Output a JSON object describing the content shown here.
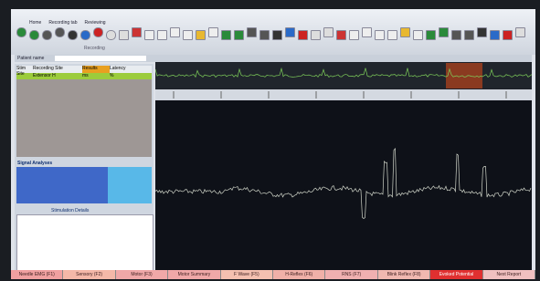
{
  "menu_tabs": [
    "Home",
    "Recording tab",
    "Reviewing"
  ],
  "toolbar_group": "Recording",
  "patient_label": "Patient name",
  "results_table": {
    "headers": [
      "Stim Site",
      "Recording Site",
      "Results",
      "Latency"
    ],
    "rows": [
      [
        "",
        "Extensor H",
        "ms",
        "%"
      ]
    ]
  },
  "signal_analyses": {
    "title": "Signal Analyses"
  },
  "stimulation": {
    "title": "Stimulation Details"
  },
  "bottom_tabs": [
    "Needle EMG (F1)",
    "Sensory (F2)",
    "Motor (F3)",
    "Motor Summary",
    "F Wave (F5)",
    "H-Reflex (F6)",
    "RNS (F7)",
    "Blink Reflex (F8)",
    "Evoked Potential",
    "Next Report"
  ]
}
